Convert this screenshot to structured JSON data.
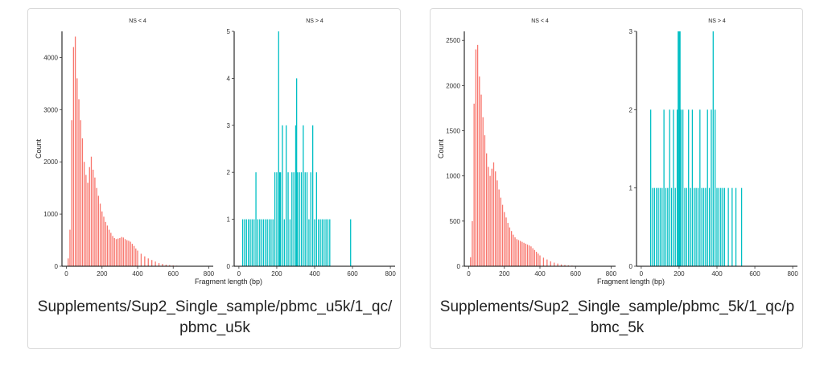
{
  "colors": {
    "salmon": "#f8766d",
    "teal": "#00bfc4",
    "axis": "#000000"
  },
  "cards": [
    {
      "caption_line1": "Supplements/Sup2_Single_sample/pbmc_u5k/1_qc/",
      "caption_line2": "pbmc_u5k"
    },
    {
      "caption_line1": "Supplements/Sup2_Single_sample/pbmc_5k/1_qc/p",
      "caption_line2": "bmc_5k"
    }
  ],
  "chart_data": [
    {
      "type": "bar",
      "layout": "faceted histogram",
      "xlabel": "Fragment length (bp)",
      "ylabel": "Count",
      "panels": [
        {
          "title": "NS < 4",
          "xlim": [
            -25,
            825
          ],
          "ylim": [
            0,
            4500
          ],
          "xticks": [
            0,
            200,
            400,
            600,
            800
          ],
          "yticks": [
            0,
            1000,
            2000,
            3000,
            4000
          ],
          "series": [
            {
              "name": "NS < 4",
              "color": "#f8766d",
              "x": [
                10,
                20,
                30,
                40,
                50,
                60,
                70,
                80,
                90,
                100,
                110,
                120,
                130,
                140,
                150,
                160,
                170,
                180,
                190,
                200,
                210,
                220,
                230,
                240,
                250,
                260,
                270,
                280,
                290,
                300,
                310,
                320,
                330,
                340,
                350,
                360,
                370,
                380,
                390,
                400,
                420,
                440,
                460,
                480,
                500,
                520,
                540,
                560,
                580,
                600,
                620,
                640,
                660,
                680,
                700,
                720,
                740,
                760,
                780,
                800
              ],
              "values": [
                150,
                700,
                2800,
                4200,
                4400,
                3600,
                3200,
                2800,
                2450,
                2000,
                1750,
                1600,
                1900,
                2100,
                1850,
                1700,
                1500,
                1350,
                1200,
                1050,
                950,
                850,
                780,
                700,
                640,
                580,
                540,
                520,
                530,
                540,
                560,
                550,
                520,
                500,
                490,
                470,
                430,
                390,
                340,
                300,
                240,
                190,
                150,
                120,
                90,
                60,
                45,
                30,
                22,
                15,
                10,
                7,
                5,
                3,
                2,
                1,
                1,
                0,
                0,
                0
              ]
            }
          ]
        },
        {
          "title": "NS > 4",
          "xlim": [
            -25,
            825
          ],
          "ylim": [
            0,
            5
          ],
          "xticks": [
            0,
            200,
            400,
            600,
            800
          ],
          "yticks": [
            0,
            1,
            2,
            3,
            4,
            5
          ],
          "series": [
            {
              "name": "NS > 4",
              "color": "#00bfc4",
              "x": [
                20,
                30,
                40,
                50,
                60,
                70,
                80,
                90,
                100,
                110,
                120,
                130,
                140,
                150,
                160,
                170,
                180,
                190,
                200,
                210,
                215,
                220,
                230,
                240,
                250,
                260,
                270,
                280,
                290,
                300,
                305,
                310,
                320,
                330,
                340,
                350,
                360,
                370,
                380,
                390,
                400,
                410,
                420,
                430,
                440,
                450,
                460,
                470,
                480,
                590
              ],
              "values": [
                1,
                1,
                1,
                1,
                1,
                1,
                1,
                2,
                1,
                1,
                1,
                1,
                1,
                1,
                1,
                1,
                1,
                2,
                2,
                5,
                2,
                2,
                3,
                1,
                3,
                2,
                1,
                2,
                2,
                3,
                4,
                2,
                2,
                2,
                3,
                2,
                2,
                1,
                2,
                3,
                1,
                2,
                1,
                1,
                1,
                1,
                1,
                1,
                1,
                1
              ]
            }
          ]
        }
      ]
    },
    {
      "type": "bar",
      "layout": "faceted histogram",
      "xlabel": "Fragment length (bp)",
      "ylabel": "Count",
      "panels": [
        {
          "title": "NS < 4",
          "xlim": [
            -25,
            825
          ],
          "ylim": [
            0,
            2600
          ],
          "xticks": [
            0,
            200,
            400,
            600,
            800
          ],
          "yticks": [
            0,
            500,
            1000,
            1500,
            2000,
            2500
          ],
          "series": [
            {
              "name": "NS < 4",
              "color": "#f8766d",
              "x": [
                10,
                20,
                30,
                40,
                50,
                60,
                70,
                80,
                90,
                100,
                110,
                120,
                130,
                140,
                150,
                160,
                170,
                180,
                190,
                200,
                210,
                220,
                230,
                240,
                250,
                260,
                270,
                280,
                290,
                300,
                310,
                320,
                330,
                340,
                350,
                360,
                370,
                380,
                390,
                400,
                420,
                440,
                460,
                480,
                500,
                520,
                540,
                560,
                580,
                600,
                620,
                640,
                660,
                680,
                700,
                720,
                740,
                760,
                780,
                800
              ],
              "values": [
                100,
                500,
                1800,
                2400,
                2450,
                2100,
                1900,
                1650,
                1450,
                1250,
                1100,
                1000,
                1080,
                1150,
                1050,
                950,
                850,
                760,
                680,
                600,
                540,
                480,
                430,
                390,
                350,
                320,
                300,
                290,
                280,
                270,
                260,
                250,
                240,
                230,
                220,
                200,
                180,
                160,
                140,
                120,
                95,
                75,
                55,
                40,
                30,
                20,
                14,
                10,
                7,
                5,
                3,
                2,
                1,
                1,
                0,
                0,
                0,
                0,
                0,
                0
              ]
            }
          ]
        },
        {
          "title": "NS > 4",
          "xlim": [
            -25,
            825
          ],
          "ylim": [
            0,
            3
          ],
          "xticks": [
            0,
            200,
            400,
            600,
            800
          ],
          "yticks": [
            0,
            1,
            2,
            3
          ],
          "series": [
            {
              "name": "NS > 4",
              "color": "#00bfc4",
              "x": [
                50,
                60,
                70,
                80,
                90,
                100,
                110,
                120,
                130,
                140,
                150,
                160,
                170,
                180,
                190,
                195,
                200,
                205,
                210,
                220,
                230,
                240,
                250,
                260,
                270,
                280,
                290,
                300,
                310,
                320,
                330,
                340,
                350,
                360,
                370,
                380,
                390,
                400,
                410,
                420,
                430,
                440,
                460,
                480,
                500,
                530
              ],
              "values": [
                2,
                1,
                1,
                1,
                1,
                1,
                1,
                2,
                1,
                1,
                2,
                1,
                2,
                1,
                2,
                3,
                3,
                3,
                2,
                2,
                1,
                1,
                2,
                1,
                2,
                1,
                1,
                1,
                2,
                1,
                1,
                1,
                2,
                1,
                2,
                3,
                2,
                1,
                1,
                1,
                1,
                1,
                1,
                1,
                1,
                1
              ]
            }
          ]
        }
      ]
    }
  ]
}
